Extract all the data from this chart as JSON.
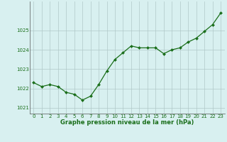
{
  "x": [
    0,
    1,
    2,
    3,
    4,
    5,
    6,
    7,
    8,
    9,
    10,
    11,
    12,
    13,
    14,
    15,
    16,
    17,
    18,
    19,
    20,
    21,
    22,
    23
  ],
  "y": [
    1022.3,
    1022.1,
    1022.2,
    1022.1,
    1021.8,
    1021.7,
    1021.4,
    1021.6,
    1022.2,
    1022.9,
    1023.5,
    1023.85,
    1024.2,
    1024.1,
    1024.1,
    1024.1,
    1023.8,
    1024.0,
    1024.1,
    1024.4,
    1024.6,
    1024.95,
    1025.3,
    1025.9
  ],
  "line_color": "#1a6e1a",
  "marker": "D",
  "marker_size": 2.0,
  "bg_color": "#d8f0f0",
  "grid_color": "#b0c8c8",
  "xlabel": "Graphe pression niveau de la mer (hPa)",
  "xlabel_color": "#1a6e1a",
  "xlabel_fontsize": 6.0,
  "tick_color": "#1a6e1a",
  "tick_fontsize": 5.0,
  "ylim": [
    1020.7,
    1026.5
  ],
  "yticks": [
    1021,
    1022,
    1023,
    1024,
    1025
  ],
  "xtick_labels": [
    "0",
    "1",
    "2",
    "3",
    "4",
    "5",
    "6",
    "7",
    "8",
    "9",
    "10",
    "11",
    "12",
    "13",
    "14",
    "15",
    "16",
    "17",
    "18",
    "19",
    "20",
    "21",
    "22",
    "23"
  ],
  "xticks": [
    0,
    1,
    2,
    3,
    4,
    5,
    6,
    7,
    8,
    9,
    10,
    11,
    12,
    13,
    14,
    15,
    16,
    17,
    18,
    19,
    20,
    21,
    22,
    23
  ]
}
